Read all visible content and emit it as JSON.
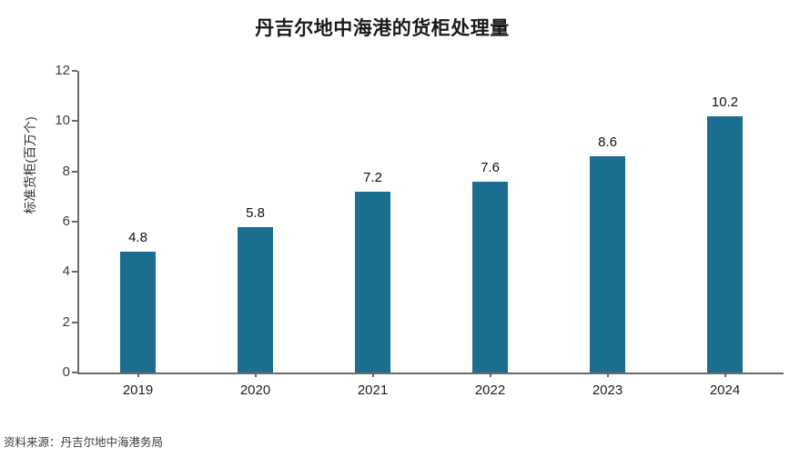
{
  "title": "丹吉尔地中海港的货柜处理量",
  "source_note": "资料来源：丹吉尔地中海港务局",
  "colors": {
    "bar": "#1C6E8F",
    "axis": "#6B6B6B",
    "title_text": "#1A1A1A",
    "tick_text": "#3D3D3D",
    "background": "#FFFFFF"
  },
  "chart_data": {
    "type": "bar",
    "title": "丹吉尔地中海港的货柜处理量",
    "categories": [
      "2019",
      "2020",
      "2021",
      "2022",
      "2023",
      "2024"
    ],
    "values": [
      4.8,
      5.8,
      7.2,
      7.6,
      8.6,
      10.2
    ],
    "data_labels": [
      "4.8",
      "5.8",
      "7.2",
      "7.6",
      "8.6",
      "10.2"
    ],
    "xlabel": "",
    "ylabel": "标准货柜(百万个)",
    "ylim": [
      0,
      12
    ],
    "yticks": [
      0,
      2,
      4,
      6,
      8,
      10,
      12
    ],
    "grid": false,
    "legend": false,
    "bar_color": "#1C6E8F",
    "source": "资料来源：丹吉尔地中海港务局"
  }
}
